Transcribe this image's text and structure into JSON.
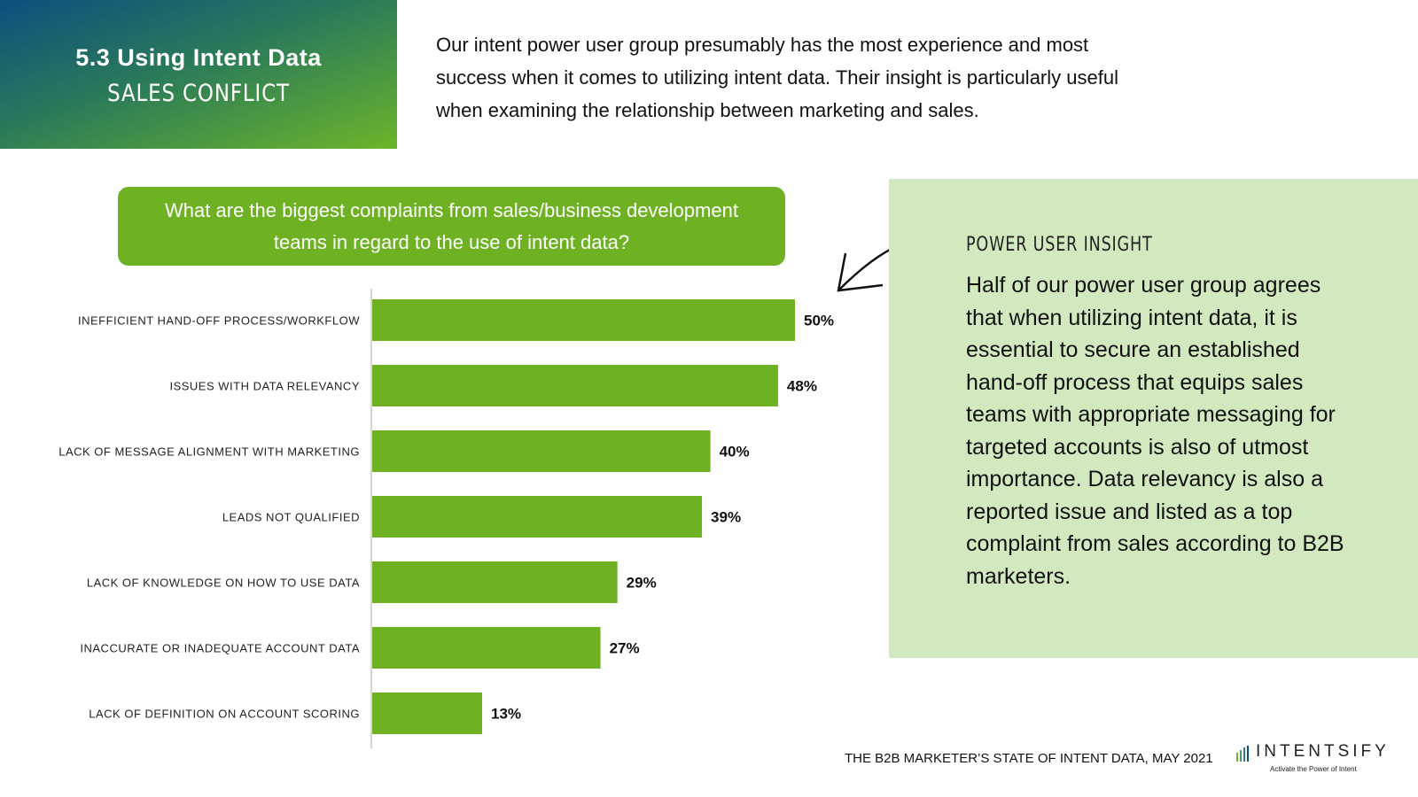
{
  "header": {
    "title": "5.3 Using Intent Data",
    "subtitle": "SALES CONFLICT"
  },
  "intro": "Our intent power user group presumably has the most experience and most success when it comes to utilizing intent data. Their insight is particularly useful when examining the relationship between marketing and sales.",
  "question": "What are the biggest complaints from sales/business development teams in regard to the use of intent data?",
  "insight": {
    "title": "POWER USER INSIGHT",
    "body": "Half of our power user group agrees that when utilizing intent data, it is essential to secure an established hand-off process that equips sales teams with appropriate messaging for targeted accounts is also of utmost importance. Data relevancy is also a reported issue and listed as a top complaint from sales according to B2B marketers."
  },
  "footer": "THE B2B MARKETER’S STATE OF INTENT DATA, MAY 2021",
  "logo": {
    "name": "INTENTSIFY",
    "tagline": "Activate the Power of Intent"
  },
  "colors": {
    "bar": "#6eb224",
    "insight_bg": "#d2e9c0"
  },
  "chart_data": {
    "type": "bar",
    "orientation": "horizontal",
    "categories": [
      "INEFFICIENT HAND-OFF PROCESS/WORKFLOW",
      "ISSUES WITH DATA RELEVANCY",
      "LACK OF MESSAGE ALIGNMENT WITH MARKETING",
      "LEADS NOT QUALIFIED",
      "LACK OF KNOWLEDGE ON HOW TO USE DATA",
      "INACCURATE OR INADEQUATE ACCOUNT DATA",
      "LACK OF DEFINITION ON ACCOUNT SCORING"
    ],
    "values": [
      50,
      48,
      40,
      39,
      29,
      27,
      13
    ],
    "labels": [
      "50%",
      "48%",
      "40%",
      "39%",
      "29%",
      "27%",
      "13%"
    ],
    "unit": "%",
    "xlim": [
      0,
      50
    ]
  }
}
